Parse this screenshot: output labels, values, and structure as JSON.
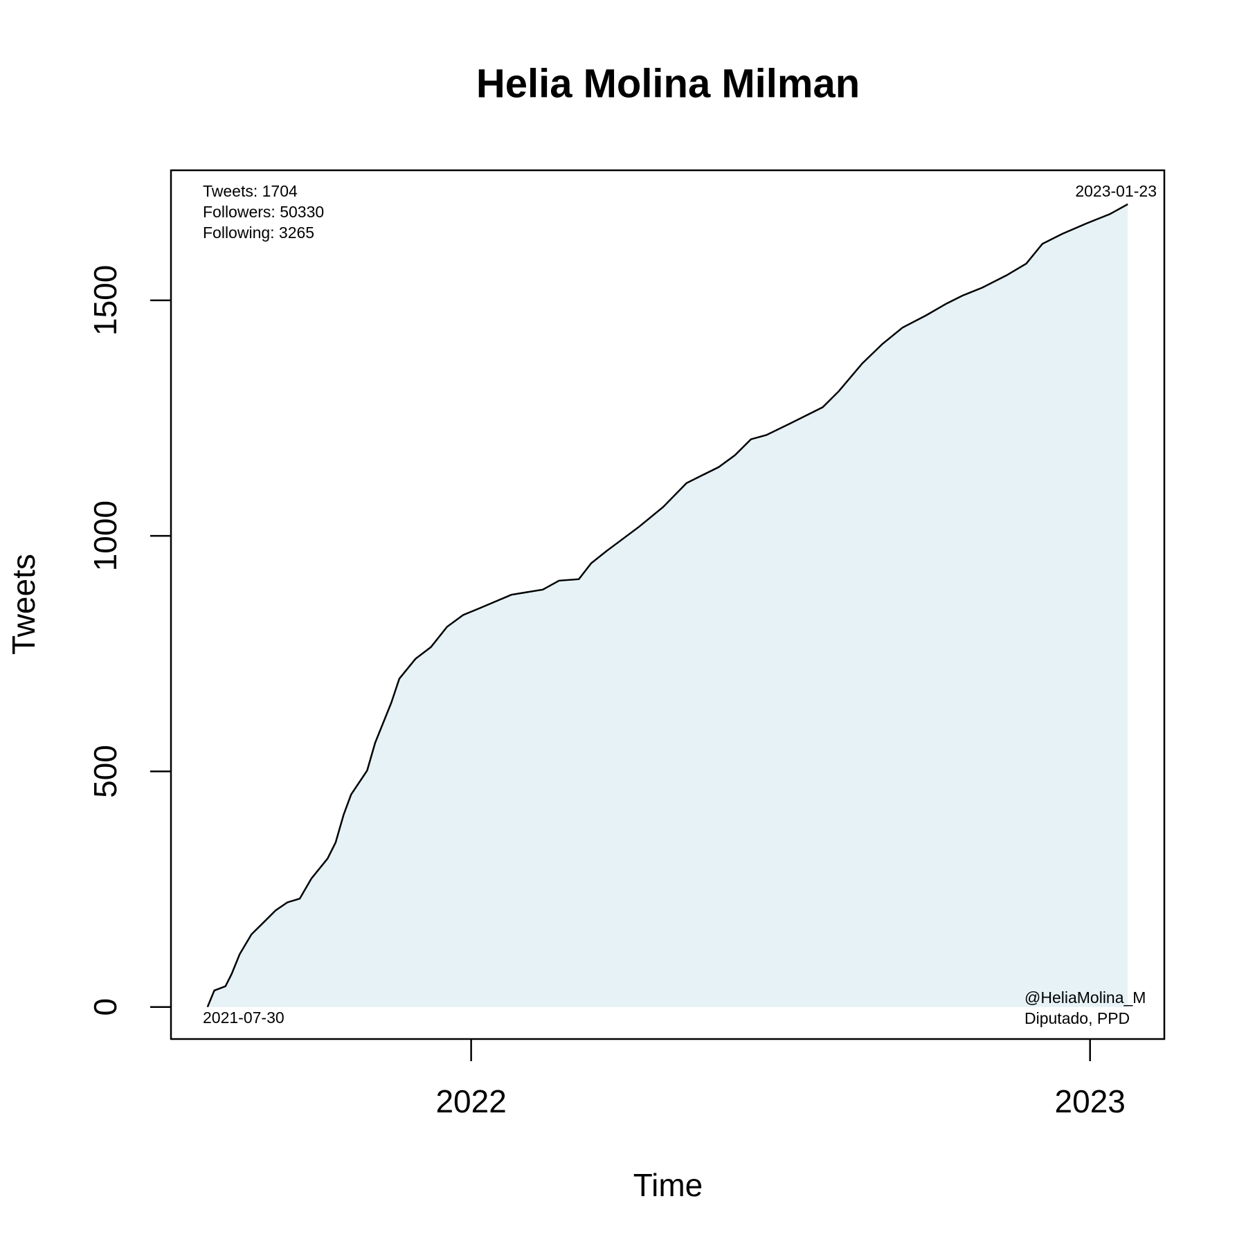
{
  "chart_data": {
    "type": "line",
    "title": "Helia Molina Milman",
    "xlabel": "Time",
    "ylabel": "Tweets",
    "annotations": [
      "Tweets: 1704",
      "Followers: 50330",
      "Following: 3265",
      "2023-01-23",
      "2021-07-30",
      "@HeliaMolina_M",
      "Diputado, PPD"
    ],
    "x": [
      2021.574,
      2021.585,
      2021.603,
      2021.613,
      2021.626,
      2021.645,
      2021.665,
      2021.684,
      2021.703,
      2021.723,
      2021.742,
      2021.768,
      2021.781,
      2021.794,
      2021.806,
      2021.832,
      2021.845,
      2021.871,
      2021.884,
      2021.91,
      2021.935,
      2021.961,
      2021.987,
      2022.013,
      2022.065,
      2022.116,
      2022.142,
      2022.174,
      2022.194,
      2022.219,
      2022.271,
      2022.31,
      2022.348,
      2022.374,
      2022.4,
      2022.426,
      2022.452,
      2022.477,
      2022.516,
      2022.568,
      2022.594,
      2022.632,
      2022.665,
      2022.697,
      2022.735,
      2022.768,
      2022.794,
      2022.826,
      2022.865,
      2022.897,
      2022.923,
      2022.955,
      2022.994,
      2023.032,
      2023.061
    ],
    "values": [
      0,
      35,
      44,
      70,
      112,
      154,
      180,
      205,
      222,
      230,
      273,
      315,
      349,
      408,
      451,
      502,
      561,
      646,
      697,
      739,
      764,
      807,
      832,
      846,
      875,
      886,
      905,
      908,
      942,
      968,
      1019,
      1061,
      1112,
      1129,
      1146,
      1171,
      1205,
      1214,
      1239,
      1273,
      1307,
      1366,
      1408,
      1442,
      1468,
      1493,
      1510,
      1527,
      1553,
      1578,
      1620,
      1641,
      1663,
      1683,
      1704
    ],
    "color": "#000000",
    "fill": "#e6f2f6",
    "xlim": [
      2021.515,
      2023.12
    ],
    "xticks": [
      2022,
      2023
    ],
    "ylim": [
      -68,
      1776
    ],
    "yticks": [
      0,
      500,
      1000,
      1500
    ]
  }
}
